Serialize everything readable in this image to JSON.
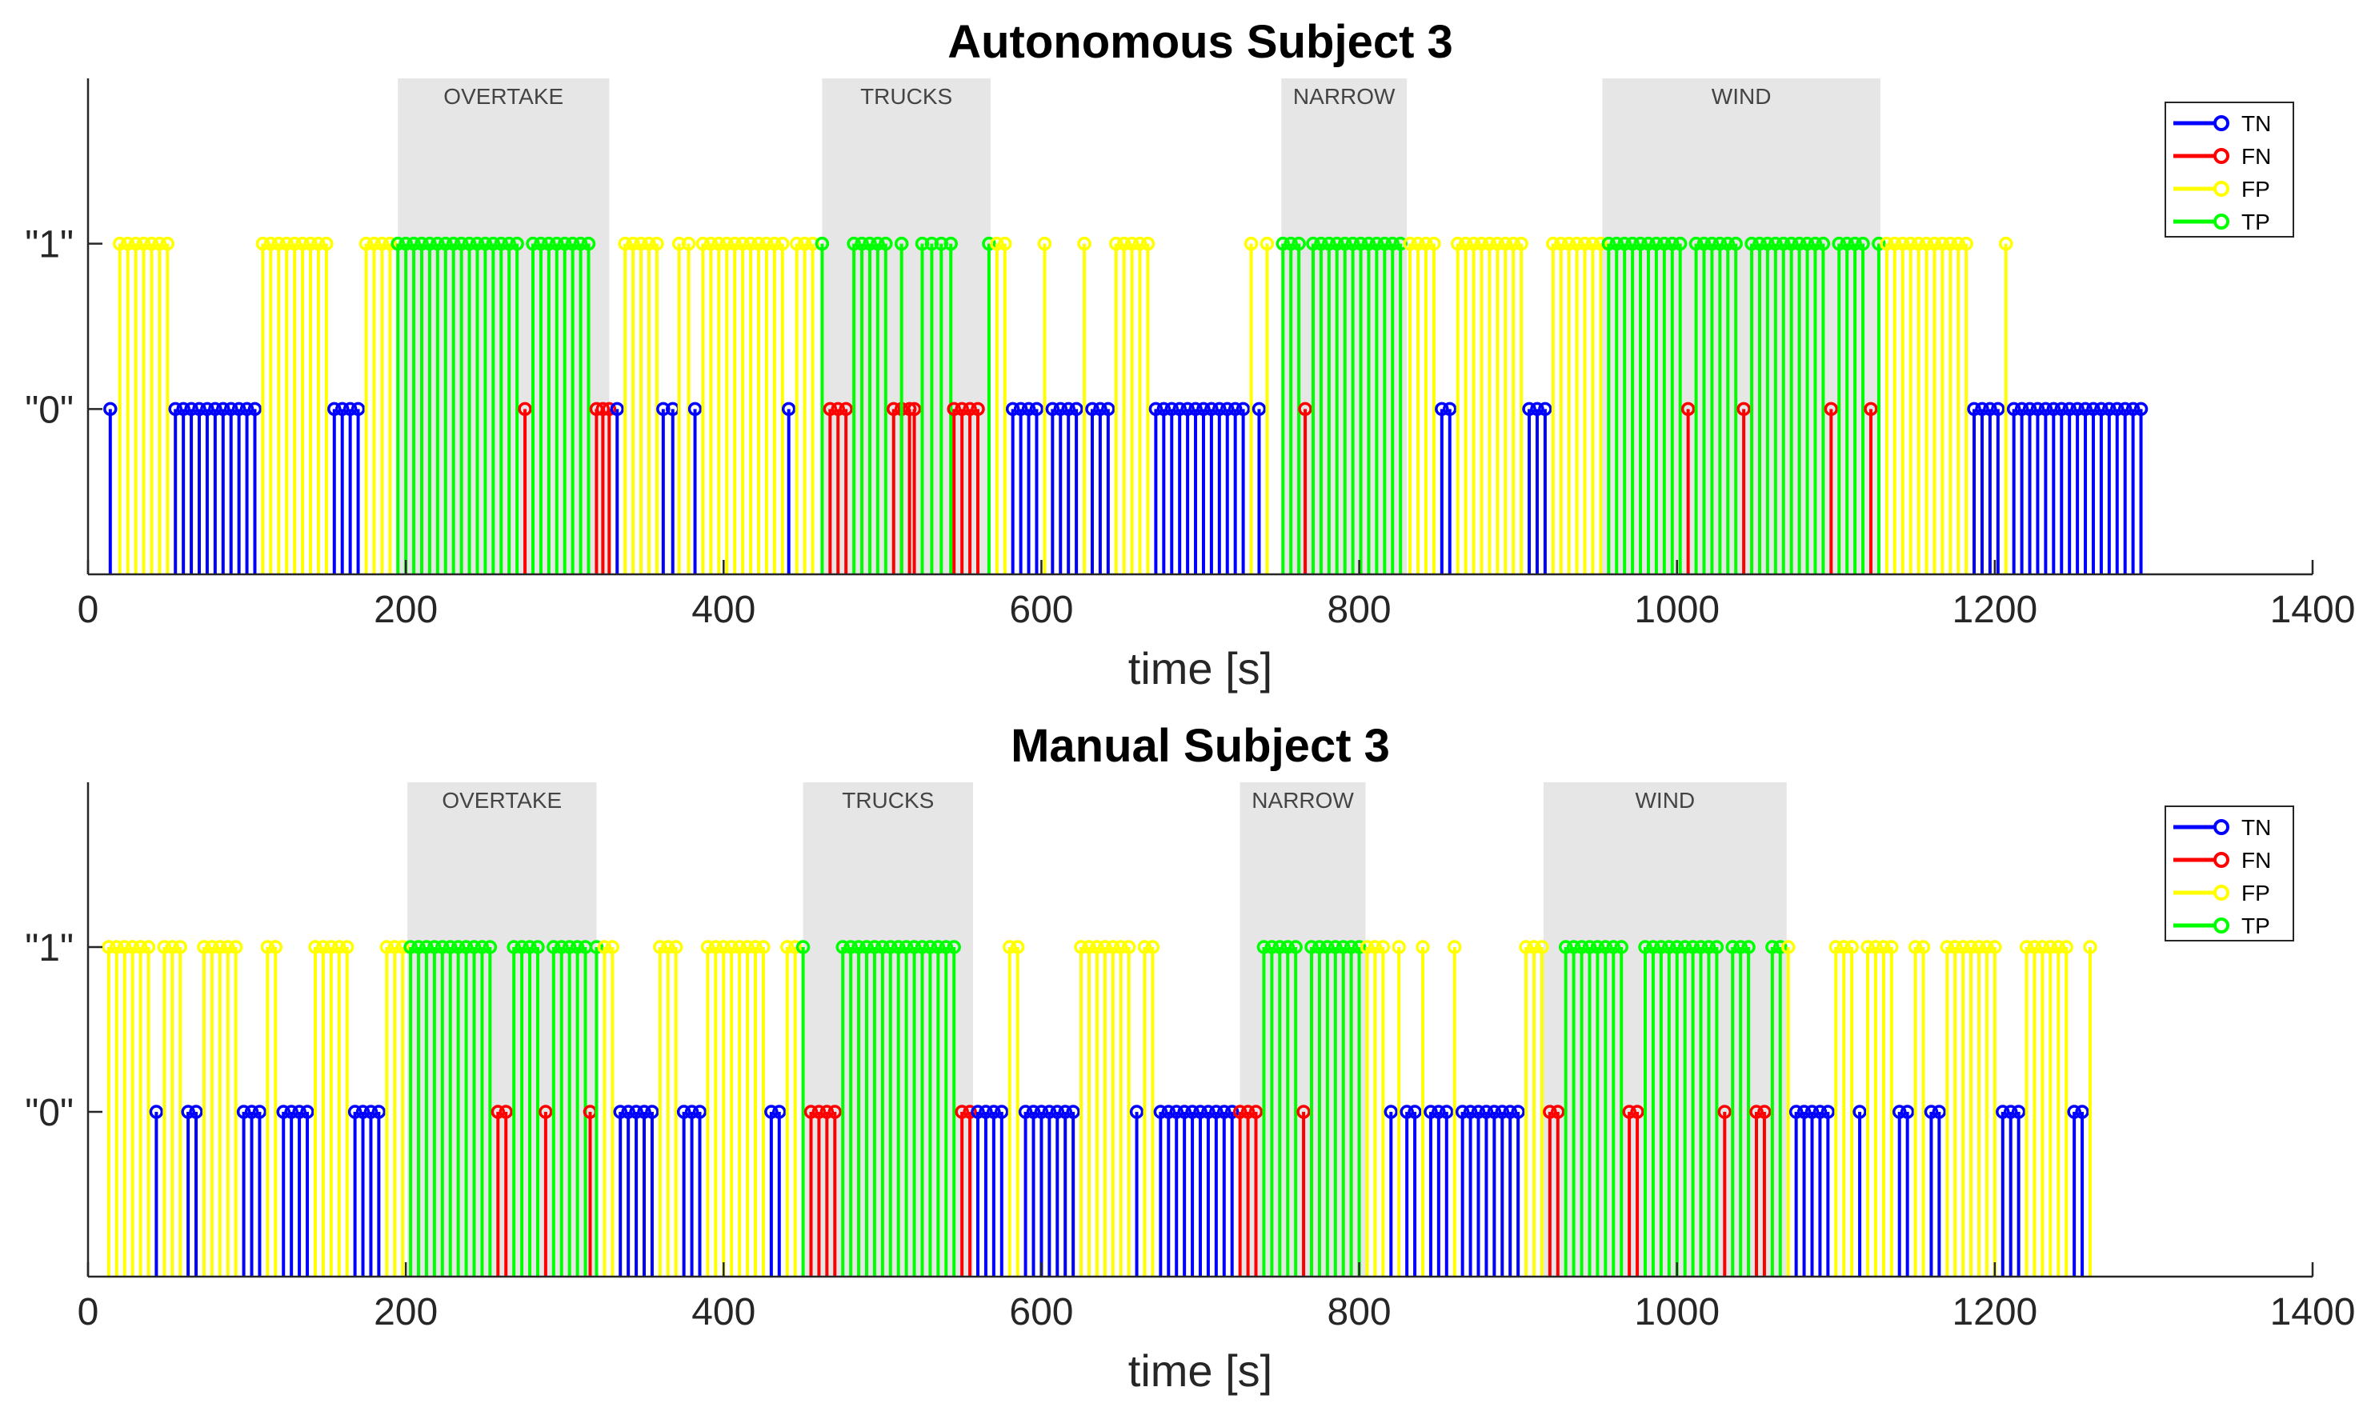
{
  "colors": {
    "TN": "#0000ff",
    "FN": "#ff0000",
    "FP": "#ffff00",
    "TP": "#00ff00",
    "section_fill": "#e6e6e6"
  },
  "chart_data": [
    {
      "type": "stem",
      "title": "Autonomous Subject 3",
      "xlabel": "time [s]",
      "ylabel": "",
      "xlim": [
        0,
        1400
      ],
      "ylim": [
        -1,
        2
      ],
      "xticks": [
        0,
        200,
        400,
        600,
        800,
        1000,
        1200,
        1400
      ],
      "xtick_labels": [
        "0",
        "200",
        "400",
        "600",
        "800",
        "1000",
        1200,
        "1400"
      ],
      "yticks": [
        0,
        1
      ],
      "ytick_labels": [
        "\"0\"",
        "\"1\""
      ],
      "legend": [
        "TN",
        "FN",
        "FP",
        "TP"
      ],
      "legend_position": "top-right",
      "sections": [
        {
          "label": "OVERTAKE",
          "start": 195,
          "end": 328
        },
        {
          "label": "TRUCKS",
          "start": 462,
          "end": 568
        },
        {
          "label": "NARROW",
          "start": 751,
          "end": 830
        },
        {
          "label": "WIND",
          "start": 953,
          "end": 1128
        }
      ],
      "runs": [
        {
          "class": "TN",
          "value": 0,
          "start": 14,
          "end": 14,
          "step": 5
        },
        {
          "class": "FP",
          "value": 1,
          "start": 20,
          "end": 50,
          "step": 5
        },
        {
          "class": "TN",
          "value": 0,
          "start": 55,
          "end": 105,
          "step": 5
        },
        {
          "class": "FP",
          "value": 1,
          "start": 110,
          "end": 150,
          "step": 5
        },
        {
          "class": "TN",
          "value": 0,
          "start": 155,
          "end": 170,
          "step": 5
        },
        {
          "class": "FP",
          "value": 1,
          "start": 175,
          "end": 190,
          "step": 5
        },
        {
          "class": "TP",
          "value": 1,
          "start": 195,
          "end": 270,
          "step": 5
        },
        {
          "class": "FN",
          "value": 0,
          "start": 275,
          "end": 275,
          "step": 5
        },
        {
          "class": "TP",
          "value": 1,
          "start": 280,
          "end": 315,
          "step": 5
        },
        {
          "class": "FN",
          "value": 0,
          "start": 320,
          "end": 328,
          "step": 4
        },
        {
          "class": "TN",
          "value": 0,
          "start": 333,
          "end": 333,
          "step": 5
        },
        {
          "class": "FP",
          "value": 1,
          "start": 338,
          "end": 358,
          "step": 5
        },
        {
          "class": "TN",
          "value": 0,
          "start": 362,
          "end": 368,
          "step": 6
        },
        {
          "class": "FP",
          "value": 1,
          "start": 372,
          "end": 378,
          "step": 6
        },
        {
          "class": "TN",
          "value": 0,
          "start": 382,
          "end": 382,
          "step": 5
        },
        {
          "class": "FP",
          "value": 1,
          "start": 387,
          "end": 437,
          "step": 5
        },
        {
          "class": "TN",
          "value": 0,
          "start": 441,
          "end": 441,
          "step": 5
        },
        {
          "class": "FP",
          "value": 1,
          "start": 446,
          "end": 456,
          "step": 5
        },
        {
          "class": "TP",
          "value": 1,
          "start": 462,
          "end": 462,
          "step": 5
        },
        {
          "class": "FN",
          "value": 0,
          "start": 467,
          "end": 477,
          "step": 5
        },
        {
          "class": "TP",
          "value": 1,
          "start": 482,
          "end": 502,
          "step": 5
        },
        {
          "class": "FN",
          "value": 0,
          "start": 507,
          "end": 517,
          "step": 5
        },
        {
          "class": "TP",
          "value": 1,
          "start": 512,
          "end": 512,
          "step": 5
        },
        {
          "class": "FN",
          "value": 0,
          "start": 520,
          "end": 520,
          "step": 5
        },
        {
          "class": "TP",
          "value": 1,
          "start": 525,
          "end": 543,
          "step": 6
        },
        {
          "class": "FN",
          "value": 0,
          "start": 545,
          "end": 560,
          "step": 5
        },
        {
          "class": "TP",
          "value": 1,
          "start": 567,
          "end": 567,
          "step": 5
        },
        {
          "class": "FP",
          "value": 1,
          "start": 572,
          "end": 577,
          "step": 5
        },
        {
          "class": "TN",
          "value": 0,
          "start": 582,
          "end": 597,
          "step": 5
        },
        {
          "class": "FP",
          "value": 1,
          "start": 602,
          "end": 602,
          "step": 5
        },
        {
          "class": "TN",
          "value": 0,
          "start": 607,
          "end": 622,
          "step": 5
        },
        {
          "class": "FP",
          "value": 1,
          "start": 627,
          "end": 627,
          "step": 5
        },
        {
          "class": "TN",
          "value": 0,
          "start": 632,
          "end": 642,
          "step": 5
        },
        {
          "class": "FP",
          "value": 1,
          "start": 647,
          "end": 667,
          "step": 5
        },
        {
          "class": "TN",
          "value": 0,
          "start": 672,
          "end": 727,
          "step": 5
        },
        {
          "class": "FP",
          "value": 1,
          "start": 732,
          "end": 732,
          "step": 5
        },
        {
          "class": "TN",
          "value": 0,
          "start": 737,
          "end": 737,
          "step": 5
        },
        {
          "class": "FP",
          "value": 1,
          "start": 742,
          "end": 742,
          "step": 5
        },
        {
          "class": "TP",
          "value": 1,
          "start": 752,
          "end": 762,
          "step": 5
        },
        {
          "class": "FN",
          "value": 0,
          "start": 766,
          "end": 766,
          "step": 5
        },
        {
          "class": "TP",
          "value": 1,
          "start": 771,
          "end": 826,
          "step": 5
        },
        {
          "class": "FP",
          "value": 1,
          "start": 832,
          "end": 847,
          "step": 5
        },
        {
          "class": "TN",
          "value": 0,
          "start": 852,
          "end": 857,
          "step": 5
        },
        {
          "class": "FP",
          "value": 1,
          "start": 862,
          "end": 902,
          "step": 5
        },
        {
          "class": "TN",
          "value": 0,
          "start": 907,
          "end": 917,
          "step": 5
        },
        {
          "class": "FP",
          "value": 1,
          "start": 922,
          "end": 952,
          "step": 5
        },
        {
          "class": "TP",
          "value": 1,
          "start": 957,
          "end": 1002,
          "step": 5
        },
        {
          "class": "FN",
          "value": 0,
          "start": 1007,
          "end": 1007,
          "step": 5
        },
        {
          "class": "TP",
          "value": 1,
          "start": 1012,
          "end": 1037,
          "step": 5
        },
        {
          "class": "FN",
          "value": 0,
          "start": 1042,
          "end": 1042,
          "step": 5
        },
        {
          "class": "TP",
          "value": 1,
          "start": 1047,
          "end": 1092,
          "step": 5
        },
        {
          "class": "FN",
          "value": 0,
          "start": 1097,
          "end": 1097,
          "step": 5
        },
        {
          "class": "TP",
          "value": 1,
          "start": 1102,
          "end": 1117,
          "step": 5
        },
        {
          "class": "FN",
          "value": 0,
          "start": 1122,
          "end": 1122,
          "step": 5
        },
        {
          "class": "TP",
          "value": 1,
          "start": 1127,
          "end": 1127,
          "step": 5
        },
        {
          "class": "FP",
          "value": 1,
          "start": 1132,
          "end": 1182,
          "step": 5
        },
        {
          "class": "TN",
          "value": 0,
          "start": 1187,
          "end": 1202,
          "step": 5
        },
        {
          "class": "FP",
          "value": 1,
          "start": 1207,
          "end": 1207,
          "step": 5
        },
        {
          "class": "TN",
          "value": 0,
          "start": 1212,
          "end": 1292,
          "step": 5
        }
      ]
    },
    {
      "type": "stem",
      "title": "Manual Subject 3",
      "xlabel": "time [s]",
      "ylabel": "",
      "xlim": [
        0,
        1400
      ],
      "ylim": [
        -1,
        2
      ],
      "xticks": [
        0,
        200,
        400,
        600,
        800,
        1000,
        1200,
        1400
      ],
      "xtick_labels": [
        "0",
        "200",
        "400",
        "600",
        "800",
        "1000",
        "1200",
        "1400"
      ],
      "yticks": [
        0,
        1
      ],
      "ytick_labels": [
        "\"0\"",
        "\"1\""
      ],
      "legend": [
        "TN",
        "FN",
        "FP",
        "TP"
      ],
      "legend_position": "top-right",
      "sections": [
        {
          "label": "OVERTAKE",
          "start": 201,
          "end": 320
        },
        {
          "label": "TRUCKS",
          "start": 450,
          "end": 557
        },
        {
          "label": "NARROW",
          "start": 725,
          "end": 804
        },
        {
          "label": "WIND",
          "start": 916,
          "end": 1069
        }
      ],
      "runs": [
        {
          "class": "FP",
          "value": 1,
          "start": 13,
          "end": 38,
          "step": 5
        },
        {
          "class": "TN",
          "value": 0,
          "start": 43,
          "end": 43,
          "step": 5
        },
        {
          "class": "FP",
          "value": 1,
          "start": 48,
          "end": 58,
          "step": 5
        },
        {
          "class": "TN",
          "value": 0,
          "start": 63,
          "end": 68,
          "step": 5
        },
        {
          "class": "FP",
          "value": 1,
          "start": 73,
          "end": 93,
          "step": 5
        },
        {
          "class": "TN",
          "value": 0,
          "start": 98,
          "end": 108,
          "step": 5
        },
        {
          "class": "FP",
          "value": 1,
          "start": 113,
          "end": 118,
          "step": 5
        },
        {
          "class": "TN",
          "value": 0,
          "start": 123,
          "end": 138,
          "step": 5
        },
        {
          "class": "FP",
          "value": 1,
          "start": 143,
          "end": 163,
          "step": 5
        },
        {
          "class": "TN",
          "value": 0,
          "start": 168,
          "end": 183,
          "step": 5
        },
        {
          "class": "FP",
          "value": 1,
          "start": 188,
          "end": 198,
          "step": 5
        },
        {
          "class": "TP",
          "value": 1,
          "start": 203,
          "end": 253,
          "step": 5
        },
        {
          "class": "FN",
          "value": 0,
          "start": 258,
          "end": 263,
          "step": 5
        },
        {
          "class": "TP",
          "value": 1,
          "start": 268,
          "end": 283,
          "step": 5
        },
        {
          "class": "FN",
          "value": 0,
          "start": 288,
          "end": 288,
          "step": 5
        },
        {
          "class": "TP",
          "value": 1,
          "start": 293,
          "end": 313,
          "step": 5
        },
        {
          "class": "FN",
          "value": 0,
          "start": 316,
          "end": 316,
          "step": 5
        },
        {
          "class": "TP",
          "value": 1,
          "start": 320,
          "end": 320,
          "step": 5
        },
        {
          "class": "FP",
          "value": 1,
          "start": 325,
          "end": 330,
          "step": 5
        },
        {
          "class": "TN",
          "value": 0,
          "start": 335,
          "end": 355,
          "step": 5
        },
        {
          "class": "FP",
          "value": 1,
          "start": 360,
          "end": 370,
          "step": 5
        },
        {
          "class": "TN",
          "value": 0,
          "start": 375,
          "end": 385,
          "step": 5
        },
        {
          "class": "FP",
          "value": 1,
          "start": 390,
          "end": 425,
          "step": 5
        },
        {
          "class": "TN",
          "value": 0,
          "start": 430,
          "end": 435,
          "step": 5
        },
        {
          "class": "FP",
          "value": 1,
          "start": 440,
          "end": 445,
          "step": 5
        },
        {
          "class": "TP",
          "value": 1,
          "start": 450,
          "end": 450,
          "step": 5
        },
        {
          "class": "FN",
          "value": 0,
          "start": 455,
          "end": 470,
          "step": 5
        },
        {
          "class": "TP",
          "value": 1,
          "start": 475,
          "end": 545,
          "step": 5
        },
        {
          "class": "FN",
          "value": 0,
          "start": 550,
          "end": 555,
          "step": 5
        },
        {
          "class": "TN",
          "value": 0,
          "start": 560,
          "end": 575,
          "step": 5
        },
        {
          "class": "FP",
          "value": 1,
          "start": 580,
          "end": 585,
          "step": 5
        },
        {
          "class": "TN",
          "value": 0,
          "start": 590,
          "end": 620,
          "step": 5
        },
        {
          "class": "FP",
          "value": 1,
          "start": 625,
          "end": 655,
          "step": 5
        },
        {
          "class": "TN",
          "value": 0,
          "start": 660,
          "end": 660,
          "step": 5
        },
        {
          "class": "FP",
          "value": 1,
          "start": 665,
          "end": 670,
          "step": 5
        },
        {
          "class": "TN",
          "value": 0,
          "start": 675,
          "end": 720,
          "step": 5
        },
        {
          "class": "FN",
          "value": 0,
          "start": 725,
          "end": 735,
          "step": 5
        },
        {
          "class": "TP",
          "value": 1,
          "start": 740,
          "end": 760,
          "step": 5
        },
        {
          "class": "FN",
          "value": 0,
          "start": 765,
          "end": 765,
          "step": 5
        },
        {
          "class": "TP",
          "value": 1,
          "start": 770,
          "end": 800,
          "step": 5
        },
        {
          "class": "FP",
          "value": 1,
          "start": 805,
          "end": 815,
          "step": 5
        },
        {
          "class": "TN",
          "value": 0,
          "start": 820,
          "end": 820,
          "step": 5
        },
        {
          "class": "FP",
          "value": 1,
          "start": 825,
          "end": 825,
          "step": 5
        },
        {
          "class": "TN",
          "value": 0,
          "start": 830,
          "end": 835,
          "step": 5
        },
        {
          "class": "FP",
          "value": 1,
          "start": 840,
          "end": 840,
          "step": 5
        },
        {
          "class": "TN",
          "value": 0,
          "start": 845,
          "end": 855,
          "step": 5
        },
        {
          "class": "FP",
          "value": 1,
          "start": 860,
          "end": 860,
          "step": 5
        },
        {
          "class": "TN",
          "value": 0,
          "start": 865,
          "end": 900,
          "step": 5
        },
        {
          "class": "FP",
          "value": 1,
          "start": 905,
          "end": 915,
          "step": 5
        },
        {
          "class": "FN",
          "value": 0,
          "start": 920,
          "end": 925,
          "step": 5
        },
        {
          "class": "TP",
          "value": 1,
          "start": 930,
          "end": 965,
          "step": 5
        },
        {
          "class": "FN",
          "value": 0,
          "start": 970,
          "end": 975,
          "step": 5
        },
        {
          "class": "TP",
          "value": 1,
          "start": 980,
          "end": 1025,
          "step": 5
        },
        {
          "class": "FN",
          "value": 0,
          "start": 1030,
          "end": 1030,
          "step": 5
        },
        {
          "class": "TP",
          "value": 1,
          "start": 1035,
          "end": 1045,
          "step": 5
        },
        {
          "class": "FN",
          "value": 0,
          "start": 1050,
          "end": 1055,
          "step": 5
        },
        {
          "class": "TP",
          "value": 1,
          "start": 1060,
          "end": 1065,
          "step": 5
        },
        {
          "class": "FP",
          "value": 1,
          "start": 1070,
          "end": 1070,
          "step": 5
        },
        {
          "class": "TN",
          "value": 0,
          "start": 1075,
          "end": 1095,
          "step": 5
        },
        {
          "class": "FP",
          "value": 1,
          "start": 1100,
          "end": 1110,
          "step": 5
        },
        {
          "class": "TN",
          "value": 0,
          "start": 1115,
          "end": 1115,
          "step": 5
        },
        {
          "class": "FP",
          "value": 1,
          "start": 1120,
          "end": 1135,
          "step": 5
        },
        {
          "class": "TN",
          "value": 0,
          "start": 1140,
          "end": 1145,
          "step": 5
        },
        {
          "class": "FP",
          "value": 1,
          "start": 1150,
          "end": 1155,
          "step": 5
        },
        {
          "class": "TN",
          "value": 0,
          "start": 1160,
          "end": 1165,
          "step": 5
        },
        {
          "class": "FP",
          "value": 1,
          "start": 1170,
          "end": 1200,
          "step": 5
        },
        {
          "class": "TN",
          "value": 0,
          "start": 1205,
          "end": 1215,
          "step": 5
        },
        {
          "class": "FP",
          "value": 1,
          "start": 1220,
          "end": 1245,
          "step": 5
        },
        {
          "class": "TN",
          "value": 0,
          "start": 1250,
          "end": 1255,
          "step": 5
        },
        {
          "class": "FP",
          "value": 1,
          "start": 1260,
          "end": 1260,
          "step": 5
        }
      ]
    }
  ]
}
